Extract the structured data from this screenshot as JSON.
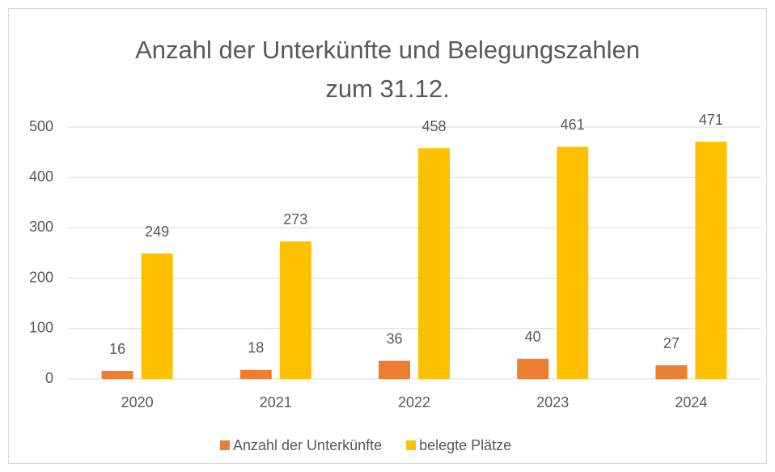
{
  "chart_data": {
    "type": "bar",
    "title": "Anzahl der Unterkünfte und Belegungszahlen zum 31.12.",
    "categories": [
      "2020",
      "2021",
      "2022",
      "2023",
      "2024"
    ],
    "series": [
      {
        "name": "Anzahl der Unterkünfte",
        "color": "#ed7d31",
        "values": [
          16,
          18,
          36,
          40,
          27
        ]
      },
      {
        "name": "belegte Plätze",
        "color": "#ffc000",
        "values": [
          249,
          273,
          458,
          461,
          471
        ]
      }
    ],
    "ylim": [
      0,
      500
    ],
    "yticks": [
      0,
      100,
      200,
      300,
      400,
      500
    ],
    "grid": true,
    "legend": "bottom"
  }
}
